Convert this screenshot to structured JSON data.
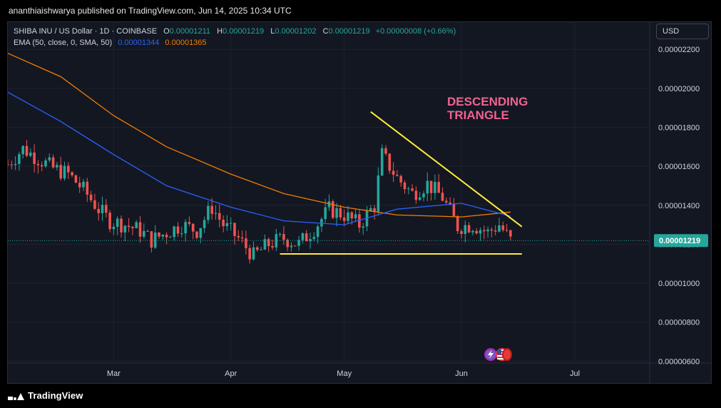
{
  "publisher_line": "ananthiaishwarya published on TradingView.com, Jun 14, 2025 10:34 UTC",
  "legend": {
    "symbol": "SHIBA INU / US Dollar · 1D · COINBASE",
    "o_label": "O",
    "o_value": "0.00001211",
    "h_label": "H",
    "h_value": "0.00001219",
    "l_label": "L",
    "l_value": "0.00001202",
    "c_label": "C",
    "c_value": "0.00001219",
    "change": "+0.00000008 (+0.66%)",
    "ema_label": "EMA (50, close, 0, SMA, 50)",
    "ema_value_1": "0.00001344",
    "ema_value_2": "0.00001365"
  },
  "currency_button": "USD",
  "annotation": "DESCENDING\nTRIANGLE",
  "brand": "TradingView",
  "colors": {
    "up": "#26a69a",
    "down": "#ef5350",
    "ema_fast": "#2962ff",
    "ema_slow": "#f57c00",
    "trendline": "#ffeb3b",
    "annotation": "#f06292",
    "background": "#131722"
  },
  "chart_data": {
    "type": "candlestick",
    "price_axis_ticks": [
      "0.00002200",
      "0.00002000",
      "0.00001800",
      "0.00001600",
      "0.00001400",
      "0.00001200",
      "0.00001000",
      "0.00000800",
      "0.00000600"
    ],
    "current_price_label": "0.00001219",
    "time_axis_ticks": [
      "Mar",
      "Apr",
      "May",
      "Jun",
      "Jul"
    ],
    "x_start": "2025-02-01",
    "y_range": [
      5.9e-06,
      2.34e-05
    ],
    "series_close": [
      {
        "d": "2025-02-01",
        "c": 1.61e-05
      },
      {
        "d": "2025-02-05",
        "c": 1.69e-05
      },
      {
        "d": "2025-02-09",
        "c": 1.64e-05
      },
      {
        "d": "2025-02-13",
        "c": 1.59e-05
      },
      {
        "d": "2025-02-17",
        "c": 1.56e-05
      },
      {
        "d": "2025-02-21",
        "c": 1.48e-05
      },
      {
        "d": "2025-02-25",
        "c": 1.38e-05
      },
      {
        "d": "2025-02-28",
        "c": 1.32e-05
      },
      {
        "d": "2025-03-04",
        "c": 1.3e-05
      },
      {
        "d": "2025-03-08",
        "c": 1.27e-05
      },
      {
        "d": "2025-03-11",
        "c": 1.22e-05
      },
      {
        "d": "2025-03-15",
        "c": 1.26e-05
      },
      {
        "d": "2025-03-19",
        "c": 1.3e-05
      },
      {
        "d": "2025-03-23",
        "c": 1.27e-05
      },
      {
        "d": "2025-03-27",
        "c": 1.39e-05
      },
      {
        "d": "2025-03-30",
        "c": 1.3e-05
      },
      {
        "d": "2025-04-03",
        "c": 1.23e-05
      },
      {
        "d": "2025-04-07",
        "c": 1.14e-05
      },
      {
        "d": "2025-04-11",
        "c": 1.2e-05
      },
      {
        "d": "2025-04-15",
        "c": 1.23e-05
      },
      {
        "d": "2025-04-19",
        "c": 1.2e-05
      },
      {
        "d": "2025-04-23",
        "c": 1.28e-05
      },
      {
        "d": "2025-04-27",
        "c": 1.38e-05
      },
      {
        "d": "2025-05-01",
        "c": 1.35e-05
      },
      {
        "d": "2025-05-05",
        "c": 1.3e-05
      },
      {
        "d": "2025-05-09",
        "c": 1.4e-05
      },
      {
        "d": "2025-05-11",
        "c": 1.66e-05
      },
      {
        "d": "2025-05-15",
        "c": 1.54e-05
      },
      {
        "d": "2025-05-19",
        "c": 1.46e-05
      },
      {
        "d": "2025-05-23",
        "c": 1.51e-05
      },
      {
        "d": "2025-05-27",
        "c": 1.44e-05
      },
      {
        "d": "2025-05-31",
        "c": 1.29e-05
      },
      {
        "d": "2025-06-04",
        "c": 1.3e-05
      },
      {
        "d": "2025-06-08",
        "c": 1.26e-05
      },
      {
        "d": "2025-06-11",
        "c": 1.3e-05
      },
      {
        "d": "2025-06-14",
        "c": 1.219e-05
      }
    ],
    "ema_50": [
      {
        "d": "2025-02-01",
        "v": 1.98e-05
      },
      {
        "d": "2025-02-15",
        "v": 1.83e-05
      },
      {
        "d": "2025-03-01",
        "v": 1.66e-05
      },
      {
        "d": "2025-03-15",
        "v": 1.5e-05
      },
      {
        "d": "2025-04-01",
        "v": 1.39e-05
      },
      {
        "d": "2025-04-15",
        "v": 1.32e-05
      },
      {
        "d": "2025-05-01",
        "v": 1.3e-05
      },
      {
        "d": "2025-05-15",
        "v": 1.38e-05
      },
      {
        "d": "2025-06-01",
        "v": 1.41e-05
      },
      {
        "d": "2025-06-14",
        "v": 1.344e-05
      }
    ],
    "sma_50_of_ema": [
      {
        "d": "2025-02-01",
        "v": 2.18e-05
      },
      {
        "d": "2025-02-15",
        "v": 2.06e-05
      },
      {
        "d": "2025-03-01",
        "v": 1.86e-05
      },
      {
        "d": "2025-03-15",
        "v": 1.7e-05
      },
      {
        "d": "2025-04-01",
        "v": 1.56e-05
      },
      {
        "d": "2025-04-15",
        "v": 1.46e-05
      },
      {
        "d": "2025-05-01",
        "v": 1.39e-05
      },
      {
        "d": "2025-05-15",
        "v": 1.35e-05
      },
      {
        "d": "2025-06-01",
        "v": 1.34e-05
      },
      {
        "d": "2025-06-14",
        "v": 1.365e-05
      }
    ],
    "trendlines": [
      {
        "name": "descending-resistance",
        "from": {
          "d": "2025-05-08",
          "v": 1.88e-05
        },
        "to": {
          "d": "2025-06-17",
          "v": 1.29e-05
        }
      },
      {
        "name": "horizontal-support",
        "from": {
          "d": "2025-04-14",
          "v": 1.15e-05
        },
        "to": {
          "d": "2025-06-17",
          "v": 1.15e-05
        }
      }
    ]
  }
}
